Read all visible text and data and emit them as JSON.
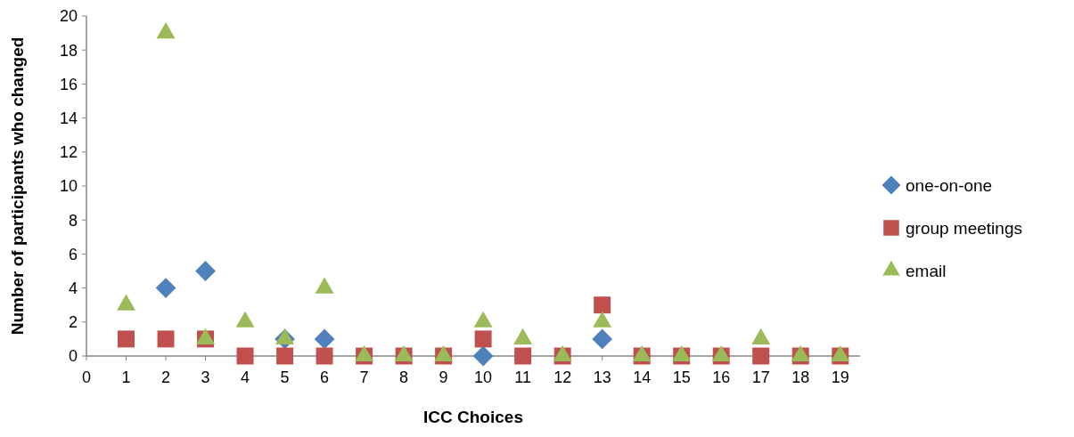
{
  "chart_data": {
    "type": "scatter",
    "xlabel": "ICC Choices",
    "ylabel": "Number of participants who changed",
    "x": [
      1,
      2,
      3,
      4,
      5,
      6,
      7,
      8,
      9,
      10,
      11,
      12,
      13,
      14,
      15,
      16,
      17,
      18,
      19
    ],
    "series": [
      {
        "name": "one-on-one",
        "color": "#4f81bd",
        "marker": "diamond",
        "values": [
          null,
          4,
          5,
          null,
          1,
          1,
          null,
          null,
          null,
          0,
          null,
          null,
          1,
          null,
          null,
          null,
          null,
          null,
          null
        ]
      },
      {
        "name": "group meetings",
        "color": "#c0504d",
        "marker": "square",
        "values": [
          1,
          1,
          1,
          0,
          0,
          0,
          0,
          0,
          0,
          1,
          0,
          0,
          3,
          0,
          0,
          0,
          0,
          0,
          0
        ]
      },
      {
        "name": "email",
        "color": "#9bbb59",
        "marker": "triangle",
        "values": [
          3,
          19,
          1,
          2,
          1,
          4,
          0,
          0,
          0,
          2,
          1,
          0,
          2,
          0,
          0,
          0,
          1,
          0,
          0
        ]
      }
    ],
    "xlim": [
      0,
      19.5
    ],
    "xticks": [
      0,
      1,
      2,
      3,
      4,
      5,
      6,
      7,
      8,
      9,
      10,
      11,
      12,
      13,
      14,
      15,
      16,
      17,
      18,
      19
    ],
    "ylim": [
      0,
      20
    ],
    "yticks": [
      0,
      2,
      4,
      6,
      8,
      10,
      12,
      14,
      16,
      18,
      20
    ],
    "grid": false,
    "legend": "right"
  }
}
